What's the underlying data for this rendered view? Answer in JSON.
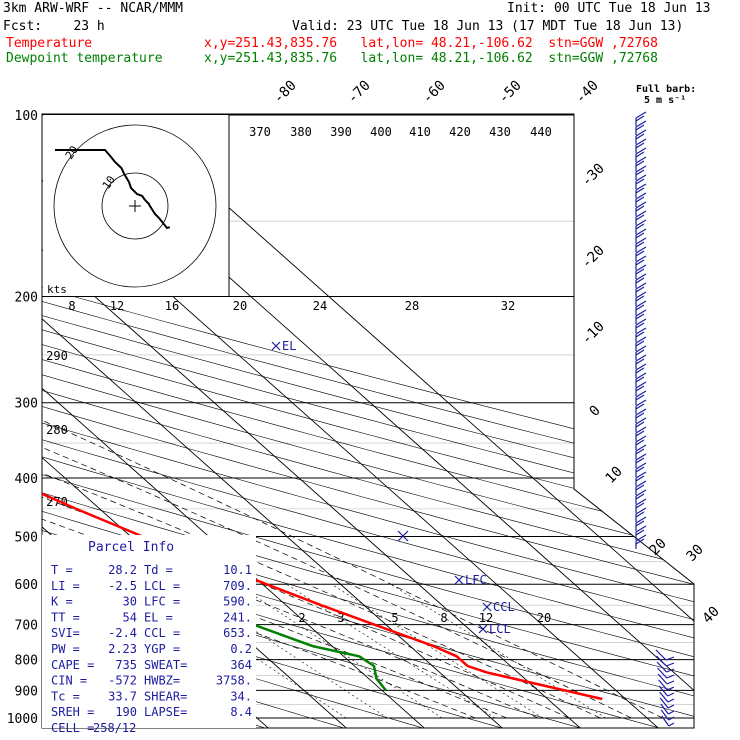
{
  "header": {
    "model": "3km ARW-WRF -- NCAR/MMM",
    "init": "Init: 00 UTC Tue 18 Jun 13",
    "fcst": "Fcst:    23 h",
    "valid": "Valid: 23 UTC Tue 18 Jun 13 (17 MDT Tue 18 Jun 13)",
    "temp_label": "Temperature",
    "temp_info": "x,y=251.43,835.76   lat,lon= 48.21,-106.62  stn=GGW ,72768",
    "dew_label": "Dewpoint temperature",
    "dew_info": "x,y=251.43,835.76   lat,lon= 48.21,-106.62  stn=GGW ,72768"
  },
  "colors": {
    "temperature": "#ff0000",
    "dewpoint": "#008000",
    "parcel": "#1c1ca0",
    "wind": "#1c1ca0"
  },
  "wind_key": {
    "line1": "Full barb:",
    "line2": "5 m s⁻¹"
  },
  "hodograph": {
    "units_label": "kts",
    "ring_labels": [
      "20",
      "10"
    ]
  },
  "parcel_info": {
    "title": "Parcel Info",
    "rows": [
      [
        "T  =",
        "28.2",
        "Td  =",
        "10.1"
      ],
      [
        "LI =",
        "-2.5",
        "LCL =",
        "709."
      ],
      [
        "K  =",
        "30",
        "LFC =",
        "590."
      ],
      [
        "TT =",
        "54",
        "EL  =",
        "241."
      ],
      [
        "SVI=",
        "-2.4",
        "CCL =",
        "653."
      ],
      [
        "PW =",
        "2.23",
        "YGP =",
        "0.2"
      ],
      [
        "CAPE =",
        "735",
        "SWEAT=",
        "364"
      ],
      [
        "CIN =",
        "-572",
        "HWBZ=",
        "3758."
      ],
      [
        "Tc =",
        "33.7",
        "SHEAR=",
        "34."
      ],
      [
        "SREH =",
        "190",
        "LAPSE=",
        "8.4"
      ],
      [
        "CELL =",
        "258/12",
        "",
        ""
      ]
    ]
  },
  "level_labels": {
    "el": "EL",
    "lfc": "LFC",
    "ccl": "CCL",
    "lcl": "LCL"
  },
  "chart_data": {
    "type": "line",
    "ylabel": "",
    "xlabel": "",
    "y_scale": "log pressure (hPa), inverted",
    "pressure_ticks": [
      100,
      200,
      300,
      400,
      500,
      600,
      700,
      800,
      900,
      1000
    ],
    "temp_axis_labels": [
      "-80",
      "-70",
      "-60",
      "-50",
      "-40",
      "-30",
      "-20",
      "-10",
      "0",
      "10",
      "20",
      "30",
      "40"
    ],
    "theta_labels_top": [
      "370",
      "380",
      "390",
      "400",
      "410",
      "420",
      "430",
      "440"
    ],
    "theta_labels_left": [
      "290",
      "280",
      "270"
    ],
    "mixing_ratio_labels_top": [
      "8",
      "12",
      "16",
      "20",
      "24",
      "28",
      "32"
    ],
    "mixing_ratio_labels_bottom": [
      "2",
      "3",
      "5",
      "8",
      "12",
      "20"
    ],
    "series": [
      {
        "name": "Temperature",
        "units": "deg C",
        "points": [
          [
            930,
            27
          ],
          [
            880,
            21
          ],
          [
            840,
            16
          ],
          [
            820,
            14.5
          ],
          [
            790,
            14.5
          ],
          [
            760,
            13
          ],
          [
            700,
            8.5
          ],
          [
            650,
            4.5
          ],
          [
            600,
            0.5
          ],
          [
            550,
            -3.5
          ],
          [
            500,
            -8.5
          ],
          [
            450,
            -13
          ],
          [
            400,
            -17.5
          ],
          [
            350,
            -22.5
          ],
          [
            300,
            -29
          ],
          [
            270,
            -33.5
          ],
          [
            245,
            -38
          ],
          [
            210,
            -44
          ],
          [
            190,
            -47
          ],
          [
            170,
            -50
          ],
          [
            150,
            -55
          ],
          [
            140,
            -57
          ],
          [
            125,
            -58
          ],
          [
            110,
            -57
          ],
          [
            100,
            -56
          ]
        ]
      },
      {
        "name": "Dewpoint temperature",
        "units": "deg C",
        "points": [
          [
            900,
            0.5
          ],
          [
            860,
            1
          ],
          [
            820,
            2.5
          ],
          [
            790,
            2
          ],
          [
            760,
            -2.5
          ],
          [
            700,
            -7
          ],
          [
            650,
            -11.5
          ],
          [
            600,
            -16
          ],
          [
            550,
            -20
          ],
          [
            500,
            -26
          ],
          [
            450,
            -31
          ],
          [
            400,
            -35
          ],
          [
            360,
            -38
          ],
          [
            330,
            -38
          ],
          [
            300,
            -40
          ],
          [
            270,
            -46
          ],
          [
            240,
            -53
          ],
          [
            210,
            -60
          ],
          [
            190,
            -64
          ],
          [
            170,
            -67
          ],
          [
            150,
            -70
          ],
          [
            130,
            -73
          ],
          [
            115,
            -79
          ],
          [
            100,
            -84
          ]
        ]
      }
    ],
    "hodograph_trace": [
      [
        -20.0,
        14.0
      ],
      [
        -16.0,
        14.0
      ],
      [
        -7.5,
        14.0
      ],
      [
        -6.2,
        12.5
      ],
      [
        -5.0,
        11.0
      ],
      [
        -3.4,
        9.5
      ],
      [
        -2.7,
        8.0
      ],
      [
        -1.5,
        6.0
      ],
      [
        -1.0,
        4.5
      ],
      [
        0.5,
        3.0
      ],
      [
        1.8,
        2.5
      ],
      [
        2.5,
        1.5
      ],
      [
        3.5,
        0.5
      ],
      [
        3.6,
        0.2
      ],
      [
        5.0,
        -2.0
      ],
      [
        6.0,
        -3.0
      ],
      [
        8.0,
        -5.5
      ],
      [
        8.7,
        -5.3
      ]
    ]
  }
}
